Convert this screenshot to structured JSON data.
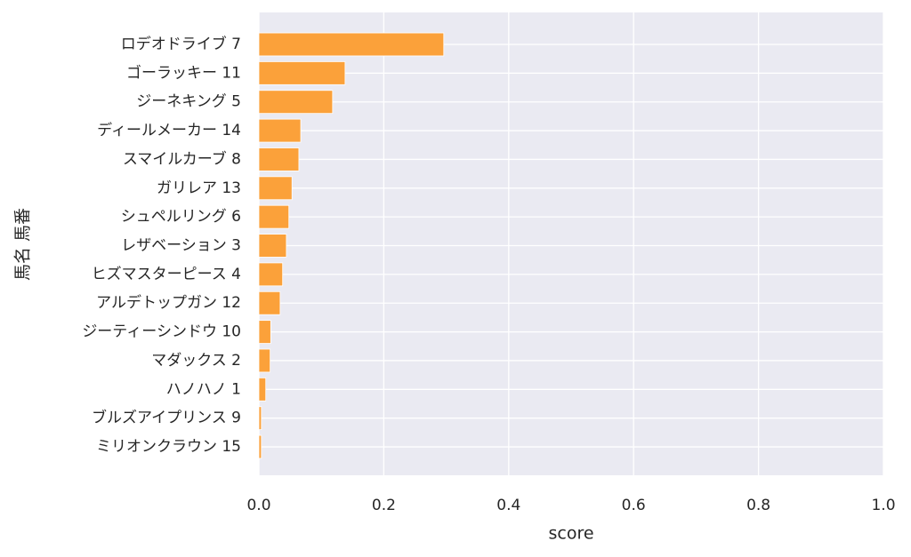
{
  "chart_data": {
    "type": "barh",
    "xlabel": "score",
    "ylabel": "馬名 馬番",
    "categories": [
      "ロデオドライブ 7",
      "ゴーラッキー 11",
      "ジーネキング 5",
      "ディールメーカー 14",
      "スマイルカーブ 8",
      "ガリレア 13",
      "シュペルリング 6",
      "レザベーション 3",
      "ヒズマスターピース 4",
      "アルデトップガン 12",
      "ジーティーシンドウ 10",
      "マダックス 2",
      "ハノハノ 1",
      "ブルズアイプリンス 9",
      "ミリオンクラウン 15"
    ],
    "values": [
      0.296,
      0.138,
      0.118,
      0.067,
      0.064,
      0.053,
      0.048,
      0.044,
      0.038,
      0.034,
      0.019,
      0.018,
      0.011,
      0.004,
      0.004
    ],
    "color": "#fba13a",
    "xlim": [
      0,
      1
    ],
    "xticks": [
      {
        "value": 0,
        "label": "0.0"
      },
      0.2,
      0.4,
      0.6,
      0.8,
      {
        "value": 1,
        "label": "1.0"
      }
    ],
    "grid": true
  }
}
